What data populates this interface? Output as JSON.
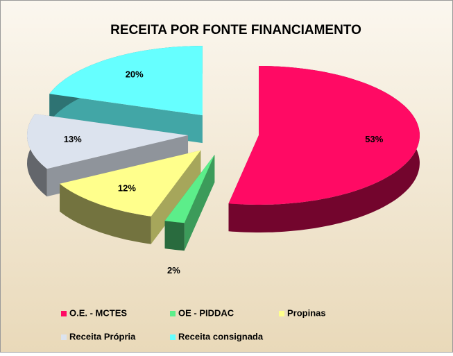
{
  "chart_data": {
    "type": "pie3d",
    "title": "RECEITA POR FONTE FINANCIAMENTO",
    "categories": [
      "O.E. - MCTES",
      "OE - PIDDAC",
      "Propinas",
      "Receita Própria",
      "Receita consignada"
    ],
    "values": [
      53,
      2,
      12,
      13,
      20
    ],
    "value_labels": [
      "53%",
      "2%",
      "12%",
      "13%",
      "20%"
    ],
    "colors": [
      "#ff0a64",
      "#5cee8a",
      "#ffff8c",
      "#dce3ee",
      "#66ffff"
    ],
    "legend": "bottom"
  }
}
